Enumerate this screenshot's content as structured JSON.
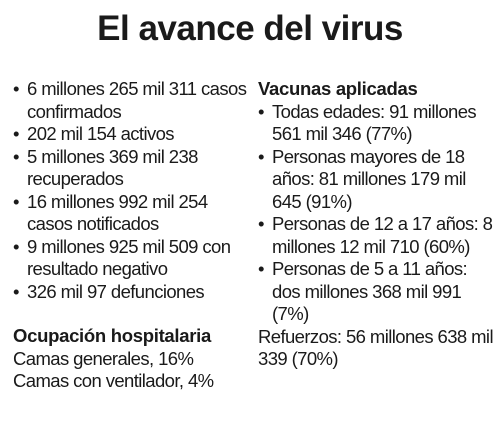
{
  "title": "El avance del virus",
  "stats": [
    "6 millones 265 mil 311 casos confirmados",
    "202 mil 154 activos",
    "5 millones 369 mil 238 recuperados",
    "16 millones 992 mil 254 casos notificados",
    "9 millones 925 mil 509 con resultado negativo",
    "326 mil 97 defunciones"
  ],
  "hospital": {
    "heading": "Ocupación hospitalaria",
    "lines": [
      "Camas generales, 16%",
      "Camas con ventilador, 4%"
    ]
  },
  "vaccines": {
    "heading": "Vacunas aplicadas",
    "items": [
      "Todas edades: 91 millones 561 mil 346 (77%)",
      "Personas mayores de 18 años: 81 millones 179 mil 645 (91%)",
      "Personas de 12 a 17 años: 8 millones 12 mil 710 (60%)",
      "Personas de 5 a 11 años: dos millones 368 mil 991 (7%)"
    ],
    "boosters": "Refuerzos: 56 millones 638 mil 339 (70%)"
  }
}
